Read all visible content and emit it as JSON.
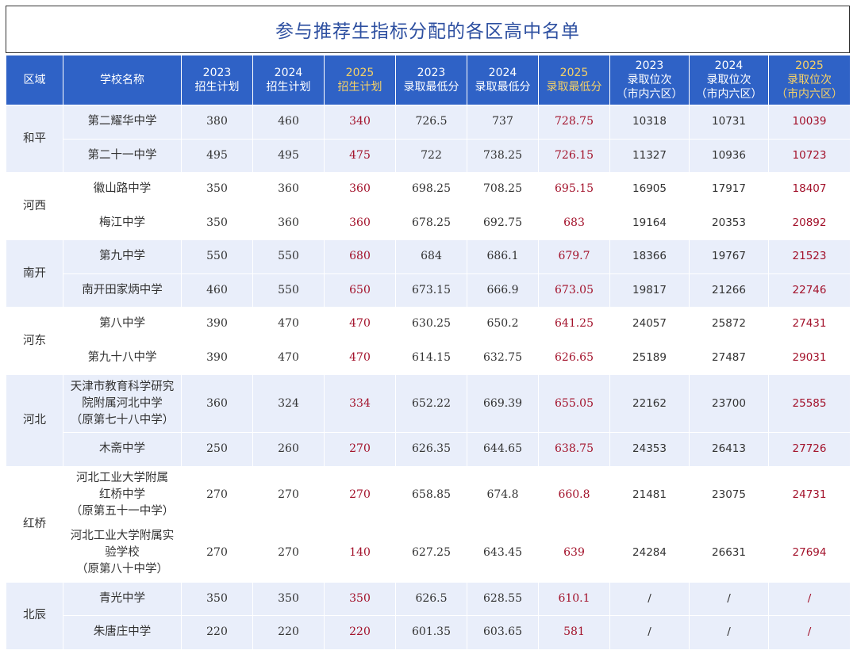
{
  "title": "参与推荐生指标分配的各区高中名单",
  "table": {
    "headers": [
      {
        "lines": [
          "区域"
        ],
        "hl": false
      },
      {
        "lines": [
          "学校名称"
        ],
        "hl": false
      },
      {
        "lines": [
          "2023",
          "招生计划"
        ],
        "hl": false
      },
      {
        "lines": [
          "2024",
          "招生计划"
        ],
        "hl": false
      },
      {
        "lines": [
          "2025",
          "招生计划"
        ],
        "hl": true
      },
      {
        "lines": [
          "2023",
          "录取最低分"
        ],
        "hl": false
      },
      {
        "lines": [
          "2024",
          "录取最低分"
        ],
        "hl": false
      },
      {
        "lines": [
          "2025",
          "录取最低分"
        ],
        "hl": true
      },
      {
        "lines": [
          "2023",
          "录取位次",
          "（市内六区）"
        ],
        "hl": false
      },
      {
        "lines": [
          "2024",
          "录取位次",
          "（市内六区）"
        ],
        "hl": false
      },
      {
        "lines": [
          "2025",
          "录取位次",
          "（市内六区）"
        ],
        "hl": true
      }
    ],
    "groups": [
      {
        "region": "和平",
        "rows": [
          {
            "school": [
              "第二耀华中学"
            ],
            "vals": [
              "380",
              "460",
              "340",
              "726.5",
              "737",
              "728.75",
              "10318",
              "10731",
              "10039"
            ]
          },
          {
            "school": [
              "第二十一中学"
            ],
            "vals": [
              "495",
              "495",
              "475",
              "722",
              "738.25",
              "726.15",
              "11327",
              "10936",
              "10723"
            ]
          }
        ]
      },
      {
        "region": "河西",
        "rows": [
          {
            "school": [
              "徽山路中学"
            ],
            "vals": [
              "350",
              "360",
              "360",
              "698.25",
              "708.25",
              "695.15",
              "16905",
              "17917",
              "18407"
            ]
          },
          {
            "school": [
              "梅江中学"
            ],
            "vals": [
              "350",
              "360",
              "360",
              "678.25",
              "692.75",
              "683",
              "19164",
              "20353",
              "20892"
            ]
          }
        ]
      },
      {
        "region": "南开",
        "rows": [
          {
            "school": [
              "第九中学"
            ],
            "vals": [
              "550",
              "550",
              "680",
              "684",
              "686.1",
              "679.7",
              "18366",
              "19767",
              "21523"
            ]
          },
          {
            "school": [
              "南开田家炳中学"
            ],
            "vals": [
              "460",
              "550",
              "650",
              "673.15",
              "666.9",
              "673.05",
              "19817",
              "21266",
              "22746"
            ]
          }
        ]
      },
      {
        "region": "河东",
        "rows": [
          {
            "school": [
              "第八中学"
            ],
            "vals": [
              "390",
              "470",
              "470",
              "630.25",
              "650.2",
              "641.25",
              "24057",
              "25872",
              "27431"
            ]
          },
          {
            "school": [
              "第九十八中学"
            ],
            "vals": [
              "390",
              "470",
              "470",
              "614.15",
              "632.75",
              "626.65",
              "25189",
              "27487",
              "29031"
            ]
          }
        ]
      },
      {
        "region": "河北",
        "rows": [
          {
            "school": [
              "天津市教育科学研究",
              "院附属河北中学",
              "（原第七十八中学）"
            ],
            "vals": [
              "360",
              "324",
              "334",
              "652.22",
              "669.39",
              "655.05",
              "22162",
              "23700",
              "25585"
            ]
          },
          {
            "school": [
              "木斋中学"
            ],
            "vals": [
              "250",
              "260",
              "270",
              "626.35",
              "644.65",
              "638.75",
              "24353",
              "26413",
              "27726"
            ]
          }
        ]
      },
      {
        "region": "红桥",
        "rows": [
          {
            "school": [
              "河北工业大学附属",
              "红桥中学",
              "（原第五十一中学）"
            ],
            "vals": [
              "270",
              "270",
              "270",
              "658.85",
              "674.8",
              "660.8",
              "21481",
              "23075",
              "24731"
            ]
          },
          {
            "school": [
              "河北工业大学附属实",
              "验学校",
              "（原第八十中学）"
            ],
            "vals": [
              "270",
              "270",
              "140",
              "627.25",
              "643.45",
              "639",
              "24284",
              "26631",
              "27694"
            ]
          }
        ]
      },
      {
        "region": "北辰",
        "rows": [
          {
            "school": [
              "青光中学"
            ],
            "vals": [
              "350",
              "350",
              "350",
              "626.5",
              "628.55",
              "610.1",
              "/",
              "/",
              "/"
            ]
          },
          {
            "school": [
              "朱唐庄中学"
            ],
            "vals": [
              "220",
              "220",
              "220",
              "601.35",
              "603.65",
              "581",
              "/",
              "/",
              "/"
            ]
          }
        ]
      }
    ]
  },
  "colors": {
    "header_bg": "#2f62c6",
    "header_text": "#ffffff",
    "header_highlight": "#f7d266",
    "highlight_value": "#a3122b",
    "band_odd": "#e9eefa",
    "band_even": "#ffffff",
    "title": "#2d4fa0"
  }
}
